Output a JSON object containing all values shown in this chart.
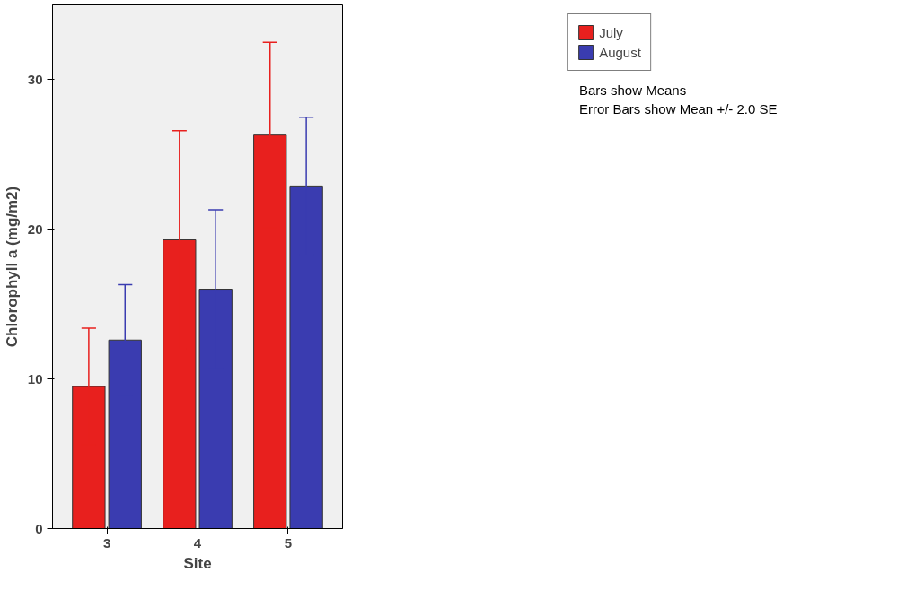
{
  "chart_data": {
    "type": "bar",
    "xlabel": "Site",
    "ylabel": "Chlorophyll a (mg/m2)",
    "categories": [
      "3",
      "4",
      "5"
    ],
    "series": [
      {
        "name": "July",
        "color": "#e8201e",
        "values": [
          9.5,
          19.3,
          26.3
        ],
        "errors": [
          3.9,
          7.3,
          6.2
        ]
      },
      {
        "name": "August",
        "color": "#3a3cb0",
        "values": [
          12.6,
          16.0,
          22.9
        ],
        "errors": [
          3.7,
          5.3,
          4.6
        ]
      }
    ],
    "ylim": [
      0,
      35
    ],
    "yticks": [
      0,
      10,
      20,
      30
    ],
    "grid": false,
    "legend": "top right",
    "annotations": [
      "Bars show Means",
      "Error Bars show Mean +/- 2.0 SE"
    ]
  }
}
